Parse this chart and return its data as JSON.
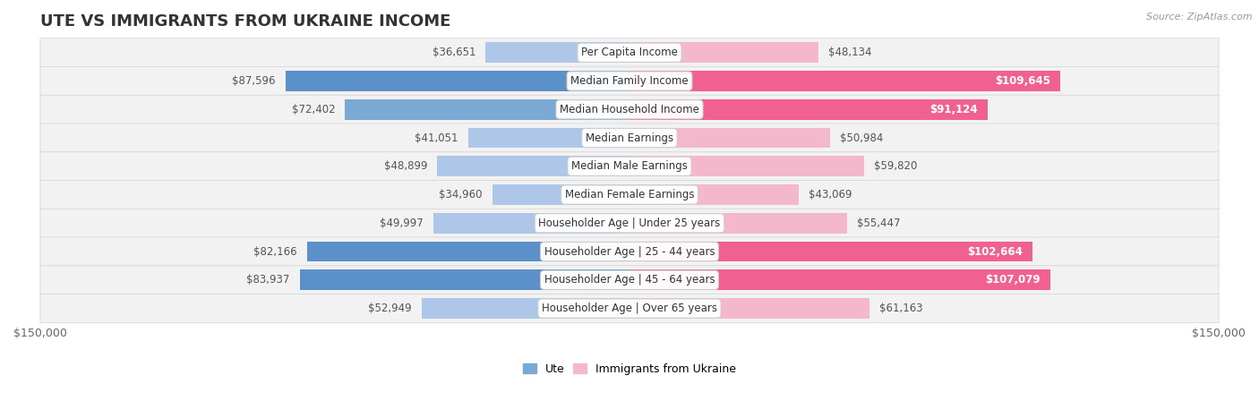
{
  "title": "UTE VS IMMIGRANTS FROM UKRAINE INCOME",
  "source": "Source: ZipAtlas.com",
  "categories": [
    "Per Capita Income",
    "Median Family Income",
    "Median Household Income",
    "Median Earnings",
    "Median Male Earnings",
    "Median Female Earnings",
    "Householder Age | Under 25 years",
    "Householder Age | 25 - 44 years",
    "Householder Age | 45 - 64 years",
    "Householder Age | Over 65 years"
  ],
  "ute_values": [
    36651,
    87596,
    72402,
    41051,
    48899,
    34960,
    49997,
    82166,
    83937,
    52949
  ],
  "ukraine_values": [
    48134,
    109645,
    91124,
    50984,
    59820,
    43069,
    55447,
    102664,
    107079,
    61163
  ],
  "ute_colors": [
    "#aec6e8",
    "#5b90c8",
    "#7aaad4",
    "#aec6e8",
    "#aec6e8",
    "#aec6e8",
    "#aec6e8",
    "#5b90c8",
    "#5b90c8",
    "#aec6e8"
  ],
  "ukraine_colors": [
    "#f4b8cc",
    "#f06090",
    "#f06090",
    "#f4b8cc",
    "#f4b8cc",
    "#f4b8cc",
    "#f4b8cc",
    "#f06090",
    "#f06090",
    "#f4b8cc"
  ],
  "row_bg_color": "#f2f2f2",
  "row_border_color": "#d8d8d8",
  "max_value": 150000,
  "xlabel_left": "$150,000",
  "xlabel_right": "$150,000",
  "legend_ute": "Ute",
  "legend_ukraine": "Immigrants from Ukraine",
  "title_fontsize": 13,
  "label_fontsize": 8.5,
  "value_fontsize": 8.5,
  "tick_fontsize": 9,
  "figsize": [
    14.06,
    4.67
  ],
  "dpi": 100,
  "white_label_threshold": 75000
}
